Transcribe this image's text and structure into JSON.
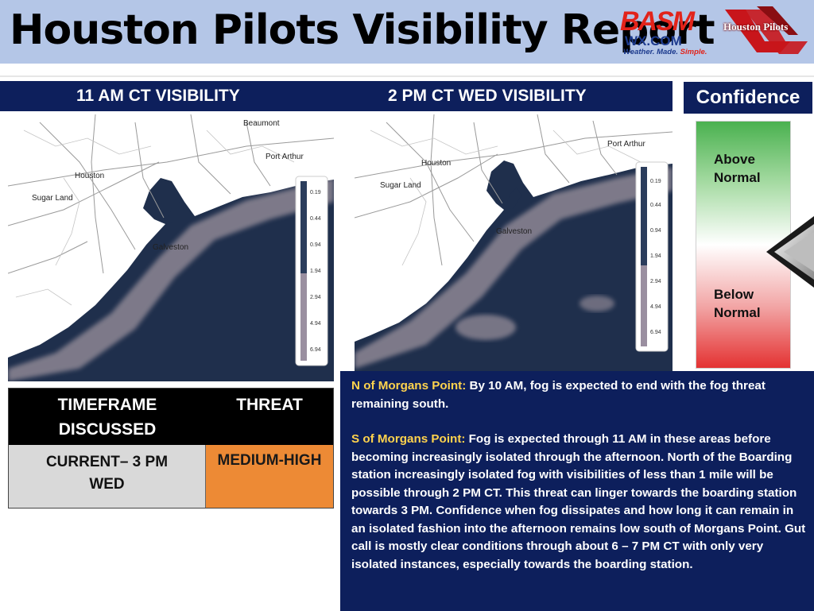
{
  "header": {
    "title": "Houston Pilots Visibility Report",
    "logo_basm": {
      "letters": "BASM",
      "site": "WX.COM",
      "tagline_a": "Weather. Made. ",
      "tagline_b": "Simple."
    },
    "logo_pilots": {
      "text": "Houston Pilots"
    },
    "colors": {
      "band": "#b4c6e7",
      "navy": "#0d1f5c"
    }
  },
  "maps": [
    {
      "heading": "11 AM CT VISIBILITY",
      "place_labels": [
        "Beaumont",
        "Port Arthur",
        "Houston",
        "Sugar Land",
        "Galveston"
      ],
      "legend_values": [
        "0.19",
        "0.44",
        "0.94",
        "1.94",
        "2.94",
        "4.94",
        "6.94"
      ]
    },
    {
      "heading": "2 PM CT WED VISIBILITY",
      "place_labels": [
        "Port Arthur",
        "Houston",
        "Sugar Land",
        "Galveston"
      ],
      "legend_values": [
        "0.19",
        "0.44",
        "0.94",
        "1.94",
        "2.94",
        "4.94",
        "6.94"
      ]
    }
  ],
  "confidence": {
    "title": "Confidence",
    "above_line1": "Above",
    "above_line2": "Normal",
    "below_line1": "Below",
    "below_line2": "Normal",
    "level": 0.5,
    "colors": {
      "top": "#4ab14f",
      "bottom": "#e43232"
    }
  },
  "threat_table": {
    "col1_header_line1": "TIMEFRAME",
    "col1_header_line2": "DISCUSSED",
    "col2_header": "THREAT",
    "timeframe_line1": "CURRENT– 3 PM",
    "timeframe_line2": "WED",
    "threat_value": "MEDIUM-HIGH",
    "threat_color": "#ed8a35"
  },
  "notes": {
    "north_lead": "N of Morgans Point:",
    "north_text": " By 10 AM, fog is expected to end with the fog threat remaining south.",
    "south_lead": "S of Morgans Point:",
    "south_text": " Fog is expected through 11 AM in these areas before becoming increasingly isolated through the afternoon.  North of the Boarding station increasingly isolated fog with visibilities of less than 1 mile will be possible through 2 PM CT.  This threat can linger towards the boarding station towards 3 PM.  Confidence when fog dissipates and how long it can remain in an isolated fashion into the afternoon remains low south of Morgans Point.  Gut call is mostly clear conditions through about 6 – 7 PM CT with only very isolated instances, especially towards the boarding station."
  }
}
